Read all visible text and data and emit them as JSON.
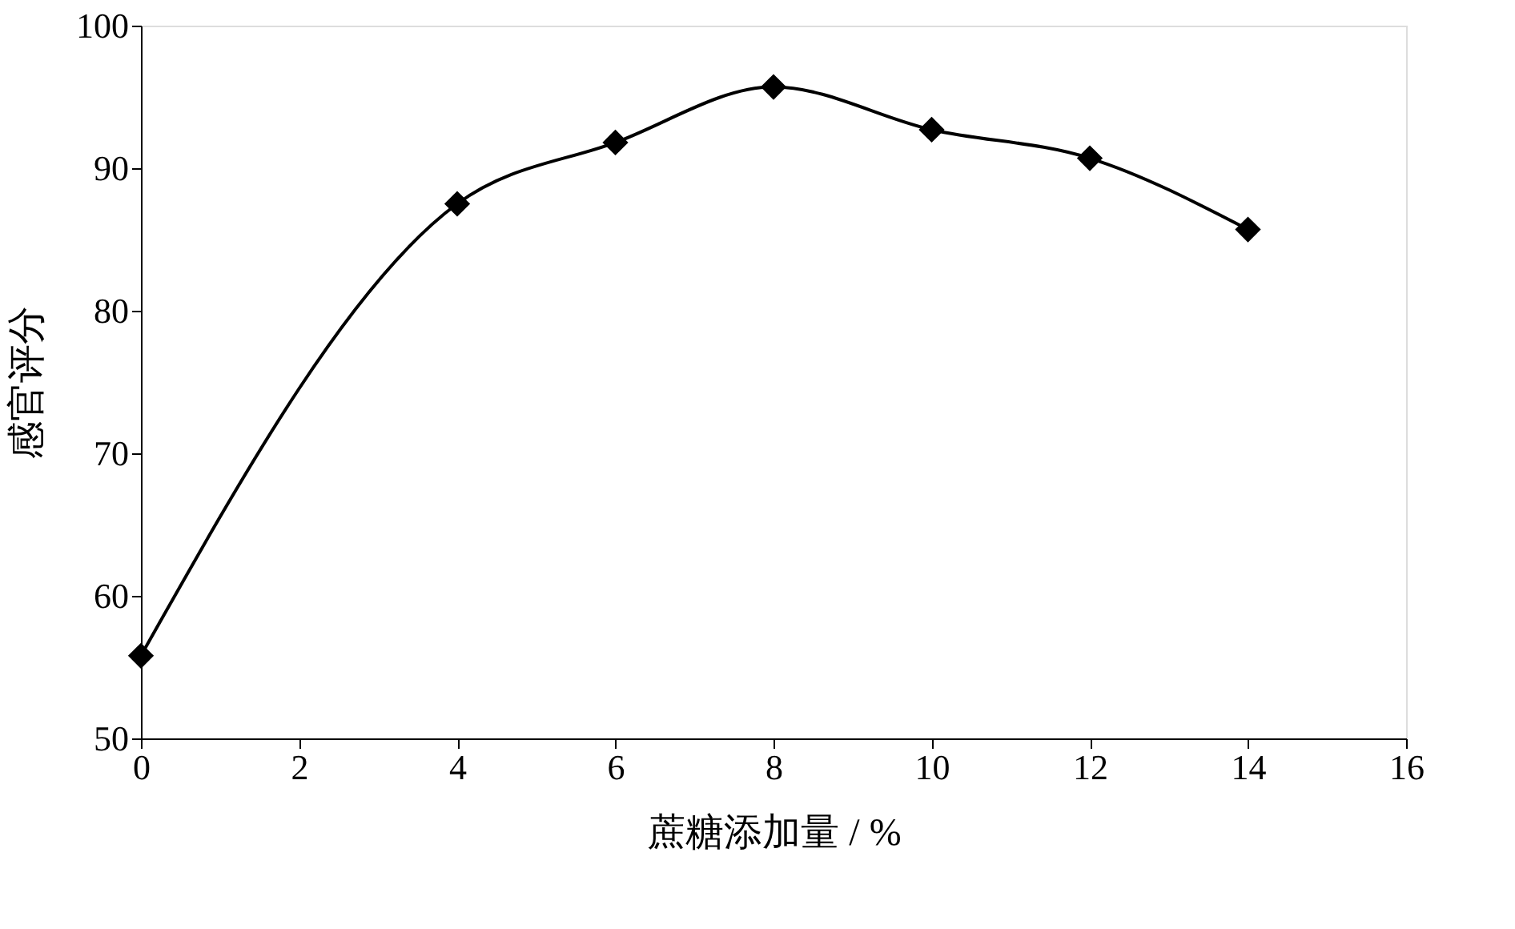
{
  "chart_data": {
    "type": "line",
    "xlabel": "蔗糖添加量 / %",
    "ylabel": "感官评分",
    "x": [
      0,
      4,
      6,
      8,
      10,
      12,
      14
    ],
    "series": [
      {
        "color": "#000000",
        "values": [
          55.8,
          87.5,
          91.8,
          95.7,
          92.7,
          90.7,
          85.7
        ]
      }
    ],
    "xlim": [
      0,
      16
    ],
    "xticks": [
      0,
      2,
      4,
      6,
      8,
      10,
      12,
      14,
      16
    ],
    "ylim": [
      50,
      100
    ],
    "yticks": [
      50,
      60,
      70,
      80,
      90,
      100
    ],
    "grid": false,
    "marker": "diamond",
    "line_style": "solid"
  }
}
